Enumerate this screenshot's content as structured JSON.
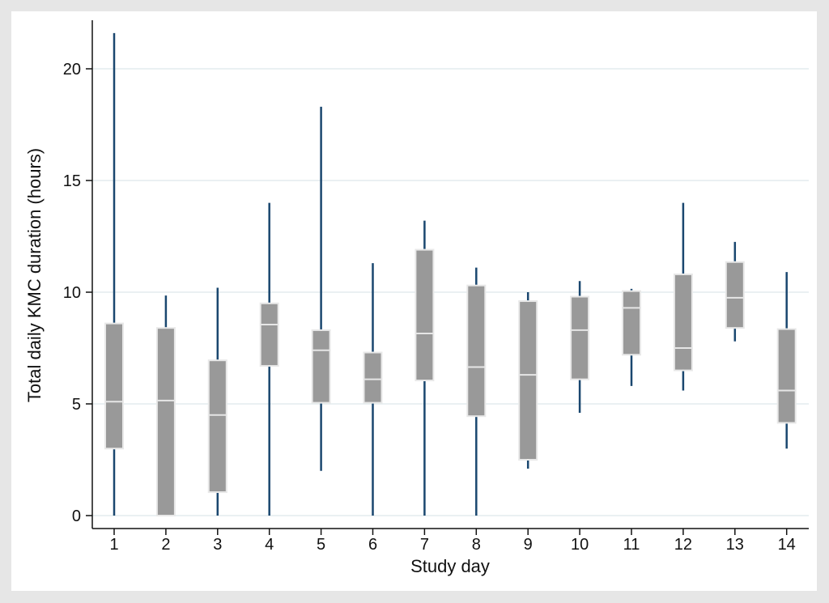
{
  "chart_data": {
    "type": "box",
    "title": "",
    "xlabel": "Study day",
    "ylabel": "Total daily KMC duration (hours)",
    "ylim": [
      0,
      22.2
    ],
    "yticks": [
      0,
      5,
      10,
      15,
      20
    ],
    "ytick_labels": [
      "0",
      "5",
      "10",
      "15",
      "20"
    ],
    "grid": true,
    "box_color": "#999999",
    "median_color": "#e6e6e6",
    "whisker_color": "#1a476f",
    "categories": [
      "1",
      "2",
      "3",
      "4",
      "5",
      "6",
      "7",
      "8",
      "9",
      "10",
      "11",
      "12",
      "13",
      "14"
    ],
    "boxes": [
      {
        "min": 0,
        "q1": 3.0,
        "median": 5.1,
        "q3": 8.6,
        "max": 21.6
      },
      {
        "min": 0,
        "q1": 0,
        "median": 5.15,
        "q3": 8.4,
        "max": 9.85
      },
      {
        "min": 0,
        "q1": 1.05,
        "median": 4.5,
        "q3": 6.95,
        "max": 10.2
      },
      {
        "min": 0,
        "q1": 6.7,
        "median": 8.55,
        "q3": 9.5,
        "max": 14.0
      },
      {
        "min": 2.0,
        "q1": 5.05,
        "median": 7.4,
        "q3": 8.3,
        "max": 18.3
      },
      {
        "min": 0,
        "q1": 5.05,
        "median": 6.1,
        "q3": 7.3,
        "max": 11.3
      },
      {
        "min": 0,
        "q1": 6.05,
        "median": 8.15,
        "q3": 11.9,
        "max": 13.2
      },
      {
        "min": 0,
        "q1": 4.45,
        "median": 6.65,
        "q3": 10.3,
        "max": 11.1
      },
      {
        "min": 2.1,
        "q1": 2.5,
        "median": 6.3,
        "q3": 9.6,
        "max": 10.0
      },
      {
        "min": 4.6,
        "q1": 6.1,
        "median": 8.3,
        "q3": 9.8,
        "max": 10.5
      },
      {
        "min": 5.8,
        "q1": 7.2,
        "median": 9.3,
        "q3": 10.05,
        "max": 10.15
      },
      {
        "min": 5.6,
        "q1": 6.5,
        "median": 7.5,
        "q3": 10.8,
        "max": 14.0
      },
      {
        "min": 7.8,
        "q1": 8.4,
        "median": 9.75,
        "q3": 11.35,
        "max": 12.25
      },
      {
        "min": 3.0,
        "q1": 4.15,
        "median": 5.6,
        "q3": 8.35,
        "max": 10.9
      }
    ]
  }
}
